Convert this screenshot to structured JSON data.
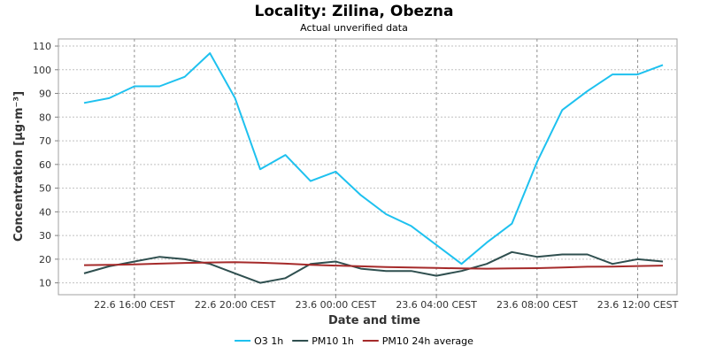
{
  "chart_data": {
    "type": "line",
    "title": "Locality: Zilina, Obezna",
    "subtitle": "Actual unverified data",
    "xlabel": "Date and time",
    "ylabel": "Concentration [µg·m⁻³]",
    "ylim": [
      5,
      113
    ],
    "x_hours": [
      "22.6 14:00",
      "22.6 15:00",
      "22.6 16:00",
      "22.6 17:00",
      "22.6 18:00",
      "22.6 19:00",
      "22.6 20:00",
      "22.6 21:00",
      "22.6 22:00",
      "22.6 23:00",
      "23.6 00:00",
      "23.6 01:00",
      "23.6 02:00",
      "23.6 03:00",
      "23.6 04:00",
      "23.6 05:00",
      "23.6 06:00",
      "23.6 07:00",
      "23.6 08:00",
      "23.6 09:00",
      "23.6 10:00",
      "23.6 11:00",
      "23.6 12:00",
      "23.6 13:00",
      "23.6 14:00"
    ],
    "x_ticks": [
      "22.6 16:00 CEST",
      "22.6 20:00 CEST",
      "23.6 00:00 CEST",
      "23.6 04:00 CEST",
      "23.6 08:00 CEST",
      "23.6 12:00 CEST"
    ],
    "y_ticks": [
      10,
      20,
      30,
      40,
      50,
      60,
      70,
      80,
      90,
      100,
      110
    ],
    "grid": true,
    "legend_position": "bottom",
    "series": [
      {
        "name": "O3 1h",
        "color": "#1ec1ef",
        "values": [
          86,
          88,
          93,
          93,
          97,
          107,
          88,
          58,
          64,
          53,
          57,
          47,
          39,
          34,
          26,
          18,
          27,
          35,
          61,
          83,
          91,
          98,
          98,
          102
        ]
      },
      {
        "name": "PM10 1h",
        "color": "#2f4f4f",
        "values": [
          14,
          17,
          19,
          21,
          20,
          18,
          14,
          10,
          12,
          18,
          19,
          16,
          15,
          15,
          13,
          15,
          18,
          23,
          21,
          22,
          22,
          18,
          20,
          19
        ]
      },
      {
        "name": "PM10 24h average",
        "color": "#a52a2a",
        "values": [
          17.5,
          17.6,
          17.8,
          18.1,
          18.4,
          18.6,
          18.7,
          18.5,
          18.1,
          17.6,
          17.3,
          17.0,
          16.7,
          16.5,
          16.3,
          16.1,
          16.0,
          16.1,
          16.2,
          16.5,
          16.8,
          16.9,
          17.1,
          17.3
        ]
      }
    ]
  }
}
